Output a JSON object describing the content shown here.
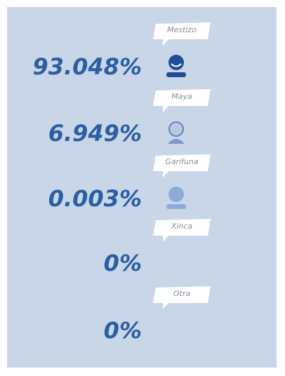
{
  "items": [
    {
      "label": "Mestizo",
      "value": "93.048%"
    },
    {
      "label": "Maya",
      "value": "6.949%"
    },
    {
      "label": "Garifuna",
      "value": "0.003%"
    },
    {
      "label": "Xinca",
      "value": "0%"
    },
    {
      "label": "Otra",
      "value": "0%"
    }
  ]
}
